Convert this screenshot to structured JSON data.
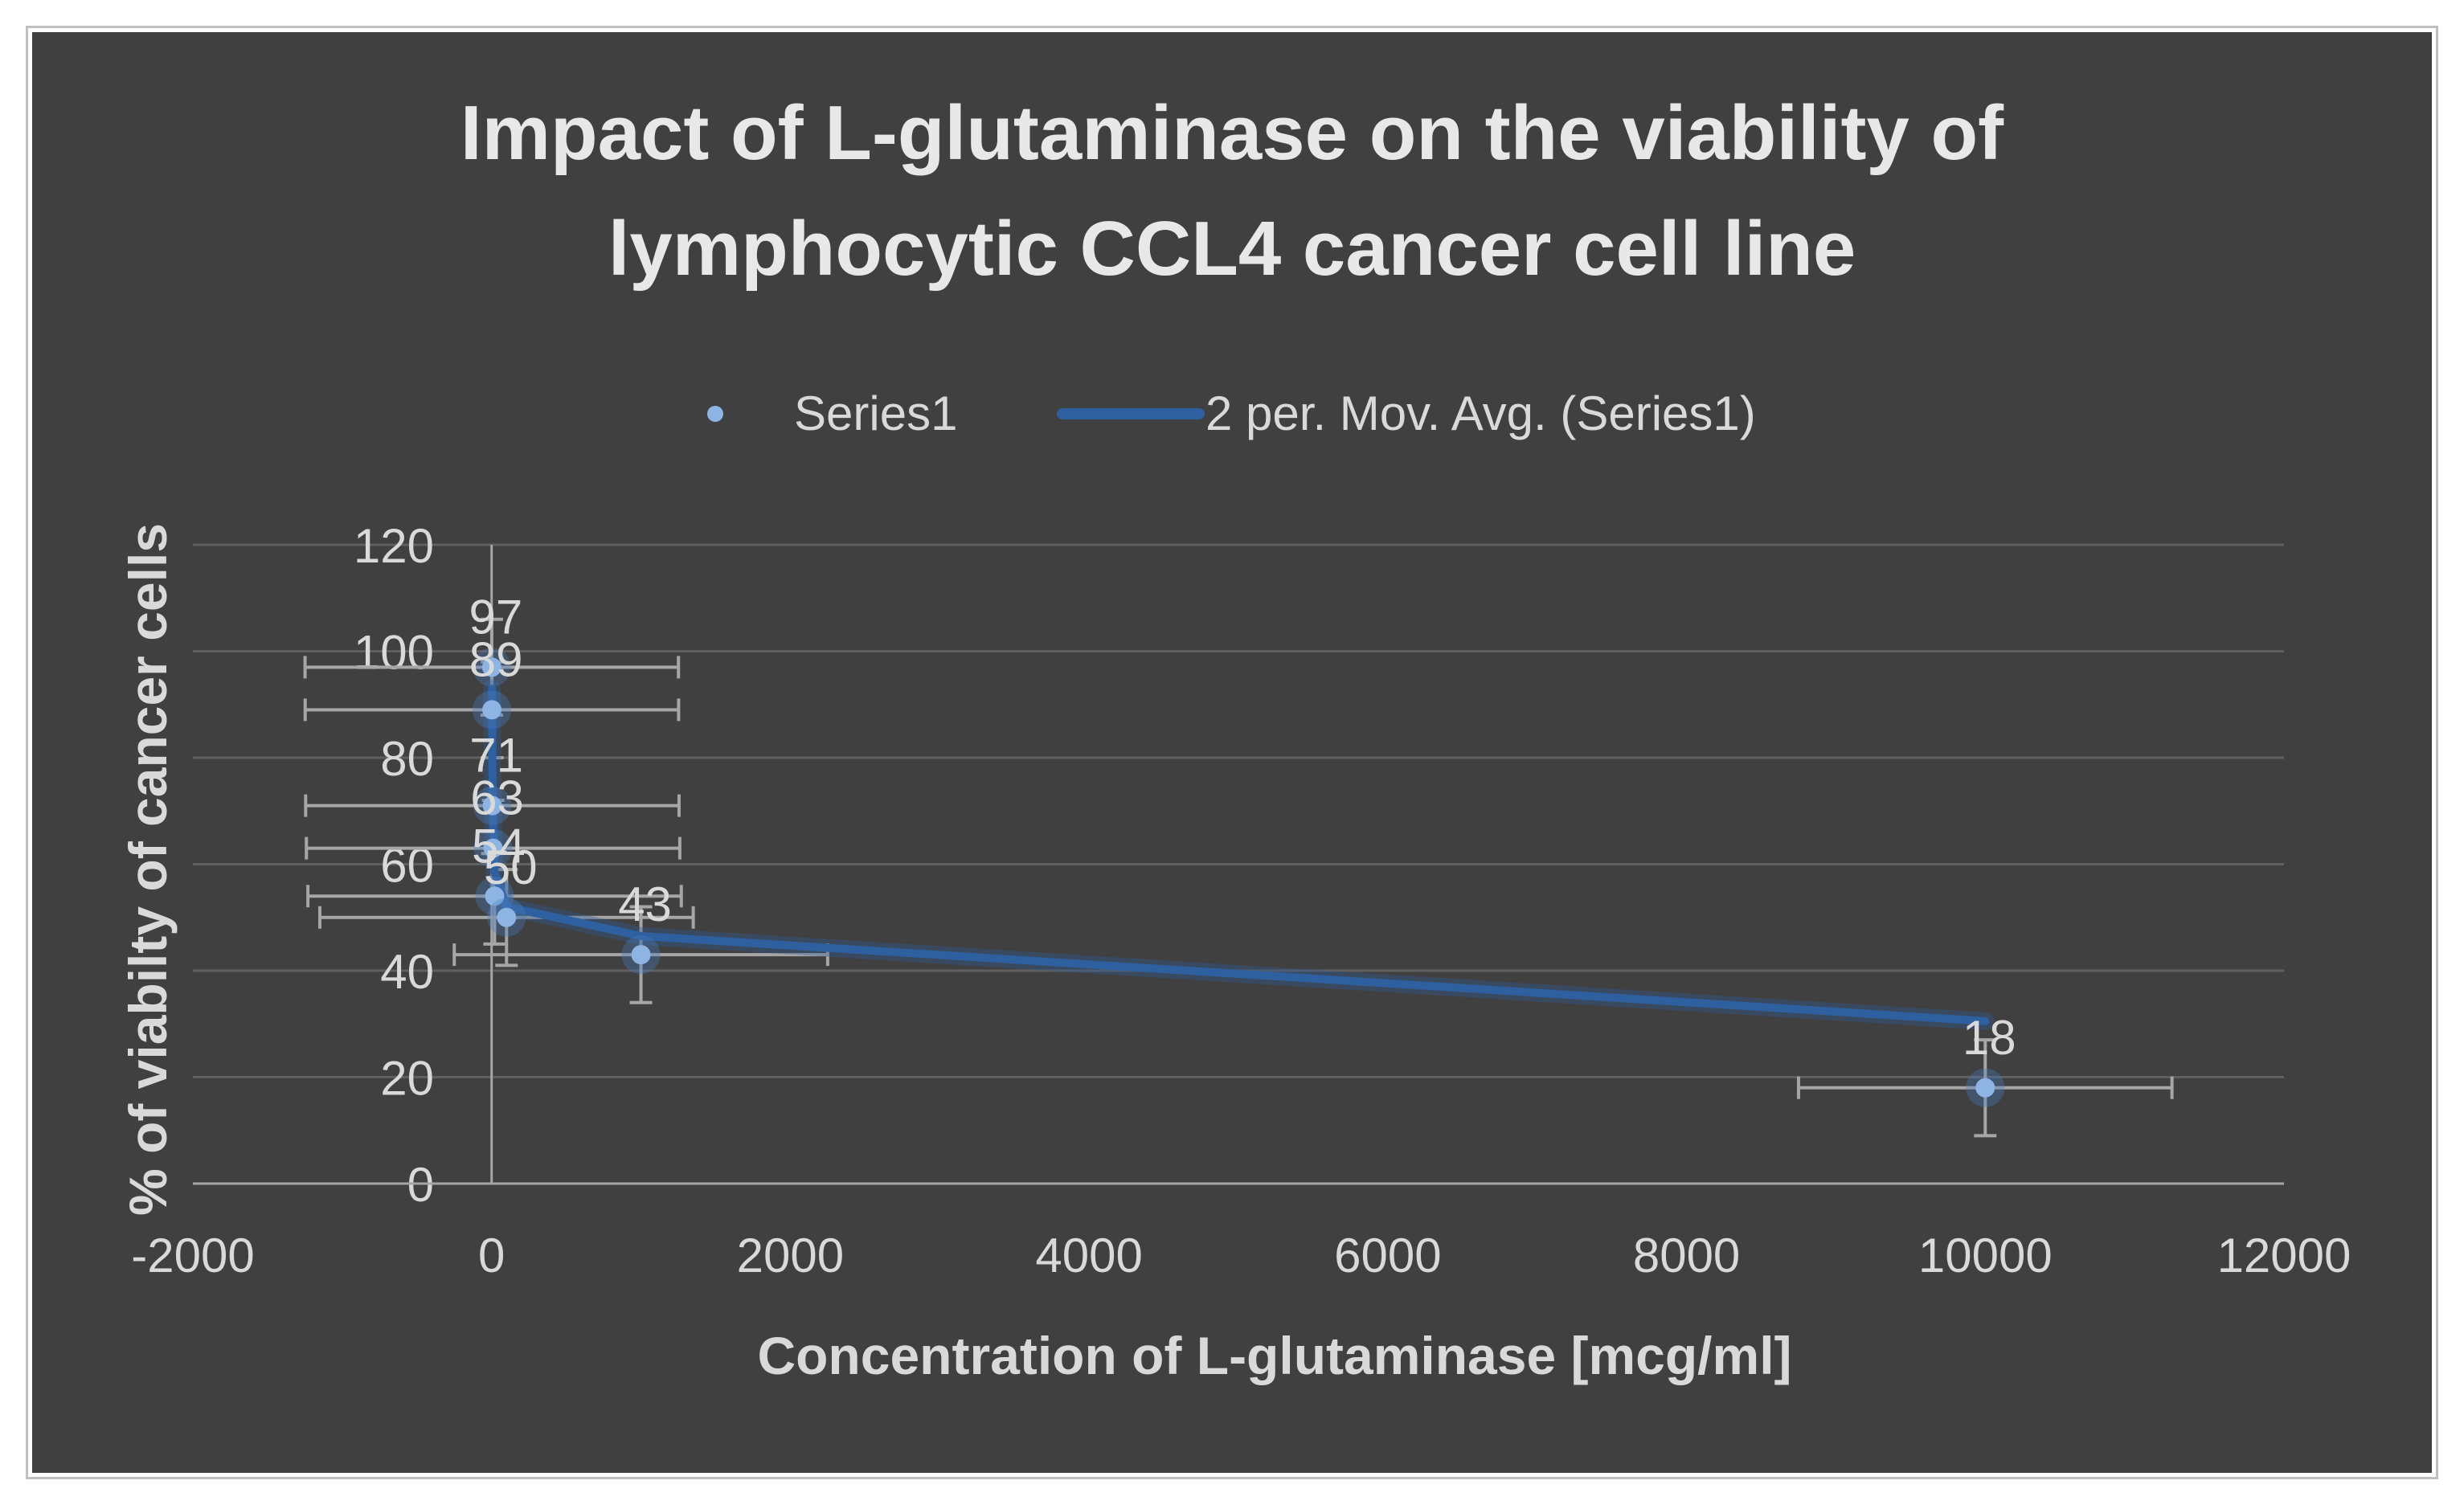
{
  "chart_data": {
    "type": "scatter",
    "title_lines": [
      "Impact of L-glutaminase on the viability of",
      "lymphocytic CCL4 cancer cell line"
    ],
    "xlabel": "Concentration of L-glutaminase [mcg/ml]",
    "ylabel": "% of viabilty of cancer cells",
    "xlim": [
      -2000,
      12000
    ],
    "ylim": [
      0,
      120
    ],
    "xticks": [
      "-2000",
      "0",
      "2000",
      "4000",
      "6000",
      "8000",
      "10000",
      "12000"
    ],
    "yticks": [
      "0",
      "20",
      "40",
      "60",
      "80",
      "100",
      "120"
    ],
    "grid": "horizontal",
    "legend_position": "top",
    "series": [
      {
        "name": "Series1",
        "kind": "points",
        "color": "#8db4e2",
        "points": [
          {
            "x": 1,
            "y": 97,
            "label": "97",
            "x_err": 1250,
            "y_err": 9
          },
          {
            "x": 2,
            "y": 89,
            "label": "89",
            "x_err": 1250,
            "y_err": 9
          },
          {
            "x": 5,
            "y": 71,
            "label": "71",
            "x_err": 1250,
            "y_err": 9
          },
          {
            "x": 10,
            "y": 63,
            "label": "63",
            "x_err": 1250,
            "y_err": 9
          },
          {
            "x": 20,
            "y": 54,
            "label": "54",
            "x_err": 1250,
            "y_err": 9
          },
          {
            "x": 100,
            "y": 50,
            "label": "50",
            "x_err": 1250,
            "y_err": 9
          },
          {
            "x": 1000,
            "y": 43,
            "label": "43",
            "x_err": 1250,
            "y_err": 9
          },
          {
            "x": 10000,
            "y": 18,
            "label": "18",
            "x_err": 1250,
            "y_err": 9
          }
        ]
      },
      {
        "name": "2 per. Mov. Avg. (Series1)",
        "kind": "line",
        "color": "#2e5f9e",
        "points": [
          {
            "x": 2,
            "y": 93
          },
          {
            "x": 5,
            "y": 80
          },
          {
            "x": 10,
            "y": 67
          },
          {
            "x": 20,
            "y": 58.5
          },
          {
            "x": 100,
            "y": 52
          },
          {
            "x": 1000,
            "y": 46.5
          },
          {
            "x": 10000,
            "y": 30.5
          }
        ]
      }
    ],
    "colors": {
      "plot_background": "#404040",
      "gridline": "#5f5f5f",
      "text": "#d9d9d9",
      "error_bar": "#a6a6a6"
    }
  }
}
